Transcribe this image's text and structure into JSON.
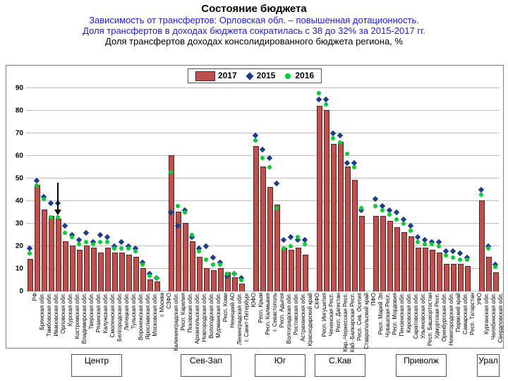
{
  "title": {
    "main": "Состояние бюджета",
    "sub1": "Зависимость от трансфертов: Орловская обл. – повышенная дотационность.",
    "sub2": "Доля трансфертов в доходах бюджета сократилась с 38 до 32% за 2015-2017 гг.",
    "sub3": "Доля трансфертов доходах консолидированного бюджета региона, %"
  },
  "legend": {
    "l2017": "2017",
    "l2015": "2015",
    "l2016": "2016"
  },
  "colors": {
    "bar_fill": "#c0504d",
    "bar_border": "#5a2320",
    "diamond": "#1f3b8e",
    "dot": "#00d030",
    "grid": "#c0c0c0",
    "bg": "#ffffff"
  },
  "chart": {
    "ymin": 0,
    "ymax": 90,
    "ytick_step": 10,
    "bar_width_ratio": 0.55,
    "arrow_index": 4,
    "items": [
      {
        "label": "РФ",
        "v2017": 14,
        "v2015": 18,
        "v2016": 16
      },
      {
        "label": "Брянская обл.",
        "v2017": 47,
        "v2015": 48,
        "v2016": 46
      },
      {
        "label": "Тамбовская обл.",
        "v2017": 36,
        "v2015": 41,
        "v2016": 40
      },
      {
        "label": "Ивановская обл.",
        "v2017": 33,
        "v2015": 38,
        "v2016": 32
      },
      {
        "label": "Орловская обл.",
        "v2017": 32,
        "v2015": 38,
        "v2016": 32
      },
      {
        "label": "Курская обл.",
        "v2017": 22,
        "v2015": 28,
        "v2016": 25
      },
      {
        "label": "Костромская обл.",
        "v2017": 20,
        "v2015": 24,
        "v2016": 23
      },
      {
        "label": "Владимирская обл.",
        "v2017": 18,
        "v2015": 22,
        "v2016": 20
      },
      {
        "label": "Тверская обл.",
        "v2017": 20,
        "v2015": 25,
        "v2016": 21
      },
      {
        "label": "Рязанская обл.",
        "v2017": 19,
        "v2015": 21,
        "v2016": 20
      },
      {
        "label": "Калужская обл.",
        "v2017": 17,
        "v2015": 24,
        "v2016": 21
      },
      {
        "label": "Смоленская обл.",
        "v2017": 19,
        "v2015": 23,
        "v2016": 21
      },
      {
        "label": "Белгородская обл.",
        "v2017": 17,
        "v2015": 19,
        "v2016": 18
      },
      {
        "label": "Липецкая обл.",
        "v2017": 17,
        "v2015": 21,
        "v2016": 18
      },
      {
        "label": "Тульская обл.",
        "v2017": 16,
        "v2015": 19,
        "v2016": 18
      },
      {
        "label": "Воронежская обл.",
        "v2017": 15,
        "v2015": 18,
        "v2016": 17
      },
      {
        "label": "Ярославская обл.",
        "v2017": 10,
        "v2015": 12,
        "v2016": 11
      },
      {
        "label": "Московская обл.",
        "v2017": 5,
        "v2015": 7,
        "v2016": 6
      },
      {
        "label": "г. Москва",
        "v2017": 4,
        "v2015": 5,
        "v2016": 5
      },
      {
        "label": "СЗФО",
        "v2017": null,
        "v2015": null,
        "v2016": null
      },
      {
        "label": "Калининградская обл.",
        "v2017": 60,
        "v2015": 34,
        "v2016": 52
      },
      {
        "label": "Респ. Карелия",
        "v2017": 35,
        "v2015": 28,
        "v2016": 37
      },
      {
        "label": "Псковская обл.",
        "v2017": 30,
        "v2015": 35,
        "v2016": 34
      },
      {
        "label": "Архангельская обл.",
        "v2017": 22,
        "v2015": 23,
        "v2016": 24
      },
      {
        "label": "Новгородская обл.",
        "v2017": 15,
        "v2015": 18,
        "v2016": 17
      },
      {
        "label": "Вологодская обл.",
        "v2017": 10,
        "v2015": 19,
        "v2016": 13
      },
      {
        "label": "Мурманская обл.",
        "v2017": 9,
        "v2015": 14,
        "v2016": 11
      },
      {
        "label": "Респ. Коми",
        "v2017": 10,
        "v2015": 12,
        "v2016": 11
      },
      {
        "label": "Ненецкий АО",
        "v2017": 8,
        "v2015": 6,
        "v2016": 7
      },
      {
        "label": "Ленинградская обл.",
        "v2017": 6,
        "v2015": 7,
        "v2016": 7
      },
      {
        "label": "г. Санкт-Петербург",
        "v2017": 3,
        "v2015": 5,
        "v2016": 4
      },
      {
        "label": "ЮФО",
        "v2017": null,
        "v2015": null,
        "v2016": null
      },
      {
        "label": "Респ. Крым",
        "v2017": 64,
        "v2015": 68,
        "v2016": 66
      },
      {
        "label": "Респ. Калмыкия",
        "v2017": 55,
        "v2015": 62,
        "v2016": 58
      },
      {
        "label": "г. Севастополь",
        "v2017": 46,
        "v2015": 58,
        "v2016": 54
      },
      {
        "label": "Респ. Адыгея",
        "v2017": 38,
        "v2015": 47,
        "v2016": 36
      },
      {
        "label": "Волгоградская обл.",
        "v2017": 19,
        "v2015": 22,
        "v2016": 18
      },
      {
        "label": "Ростовская обл.",
        "v2017": 18,
        "v2015": 23,
        "v2016": 19
      },
      {
        "label": "Астраханская обл.",
        "v2017": 19,
        "v2015": 22,
        "v2016": 23
      },
      {
        "label": "Краснодарский край",
        "v2017": 16,
        "v2015": 22,
        "v2016": 20
      },
      {
        "label": "СКФО",
        "v2017": null,
        "v2015": null,
        "v2016": null
      },
      {
        "label": "Респ. Ингушетия",
        "v2017": 82,
        "v2015": 84,
        "v2016": 87
      },
      {
        "label": "Чеченская Респ.",
        "v2017": 80,
        "v2015": 84,
        "v2016": 82
      },
      {
        "label": "Респ. Дагестан",
        "v2017": 65,
        "v2015": 69,
        "v2016": 67
      },
      {
        "label": "Кар.-Черкесская Респ.",
        "v2017": 66,
        "v2015": 68,
        "v2016": 65
      },
      {
        "label": "Каб.-Балкарская Респ.",
        "v2017": 55,
        "v2015": 56,
        "v2016": 60
      },
      {
        "label": "Респ. Сев. Осетия",
        "v2017": 49,
        "v2015": 56,
        "v2016": 54
      },
      {
        "label": "Ставропольский край",
        "v2017": 33,
        "v2015": 35,
        "v2016": 36
      },
      {
        "label": "ПФО",
        "v2017": null,
        "v2015": null,
        "v2016": null
      },
      {
        "label": "Респ. Марий Эл",
        "v2017": 33,
        "v2015": 40,
        "v2016": 37
      },
      {
        "label": "Чувашская Респ.",
        "v2017": 33,
        "v2015": 37,
        "v2016": 35
      },
      {
        "label": "Респ. Мордовия",
        "v2017": 31,
        "v2015": 35,
        "v2016": 33
      },
      {
        "label": "Пензенская обл.",
        "v2017": 28,
        "v2015": 34,
        "v2016": 31
      },
      {
        "label": "Кировская обл.",
        "v2017": 26,
        "v2015": 31,
        "v2016": 29
      },
      {
        "label": "Саратовская обл.",
        "v2017": 24,
        "v2015": 28,
        "v2016": 26
      },
      {
        "label": "Ульяновская обл.",
        "v2017": 19,
        "v2015": 23,
        "v2016": 21
      },
      {
        "label": "Респ. Башкортостан",
        "v2017": 19,
        "v2015": 22,
        "v2016": 20
      },
      {
        "label": "Удмуртская Респ.",
        "v2017": 18,
        "v2015": 21,
        "v2016": 20
      },
      {
        "label": "Оренбургская обл.",
        "v2017": 17,
        "v2015": 21,
        "v2016": 19
      },
      {
        "label": "Нижегородская обл.",
        "v2017": 12,
        "v2015": 17,
        "v2016": 15
      },
      {
        "label": "Пермский край",
        "v2017": 12,
        "v2015": 17,
        "v2016": 14
      },
      {
        "label": "Самарская обл.",
        "v2017": 12,
        "v2015": 16,
        "v2016": 13
      },
      {
        "label": "Респ. Татарстан",
        "v2017": 11,
        "v2015": 14,
        "v2016": 13
      },
      {
        "label": "УФО",
        "v2017": null,
        "v2015": null,
        "v2016": null
      },
      {
        "label": "Курганская обл.",
        "v2017": 40,
        "v2015": 44,
        "v2016": 42
      },
      {
        "label": "Челябинская обл.",
        "v2017": 15,
        "v2015": 19,
        "v2016": 18
      },
      {
        "label": "Свердловская обл.",
        "v2017": 8,
        "v2015": 11,
        "v2016": 10
      }
    ]
  },
  "regions": [
    {
      "label": "Центр",
      "from": 1,
      "to": 18
    },
    {
      "label": "Сев-Зап",
      "from": 20,
      "to": 30
    },
    {
      "label": "Юг",
      "from": 32,
      "to": 39
    },
    {
      "label": "С.Кав",
      "from": 41,
      "to": 47
    },
    {
      "label": "Приволж",
      "from": 49,
      "to": 62
    },
    {
      "label": "Урал",
      "from": 64,
      "to": 66
    }
  ]
}
